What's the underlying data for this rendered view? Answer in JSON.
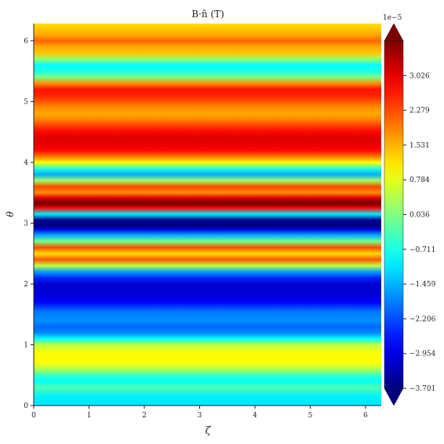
{
  "chart_data": {
    "type": "heatmap",
    "title": "B·n̂ (T)",
    "xlabel": "ζ",
    "ylabel": "θ",
    "xlim": [
      0,
      6.283
    ],
    "ylim": [
      0,
      6.283
    ],
    "x_ticks": [
      0,
      1,
      2,
      3,
      4,
      5,
      6
    ],
    "y_ticks": [
      0,
      1,
      2,
      3,
      4,
      5,
      6
    ],
    "colormap": "jet",
    "colorbar": {
      "exponent_label": "1e−5",
      "range": [
        -3.701,
        3.774
      ],
      "ticks": [
        -3.701,
        -2.954,
        -2.206,
        -1.459,
        -0.711,
        0.036,
        0.784,
        1.531,
        2.279,
        3.026
      ],
      "tick_labels": [
        "−3.701",
        "−2.954",
        "−2.206",
        "−1.459",
        "−0.711",
        "0.036",
        "0.784",
        "1.531",
        "2.279",
        "3.026"
      ],
      "extend": "both"
    },
    "note_structure": "field varies only with θ; constant along ζ",
    "profile_theta": [
      0.0,
      0.15,
      0.3,
      0.4,
      0.5,
      0.6,
      0.7,
      0.85,
      1.0,
      1.1,
      1.2,
      1.3,
      1.4,
      1.55,
      1.7,
      1.85,
      2.0,
      2.1,
      2.2,
      2.3,
      2.4,
      2.5,
      2.6,
      2.7,
      2.8,
      2.9,
      2.95,
      3.05,
      3.15,
      3.25,
      3.3,
      3.35,
      3.42,
      3.5,
      3.6,
      3.7,
      3.8,
      3.9,
      4.0,
      4.1,
      4.2,
      4.3,
      4.4,
      4.5,
      4.6,
      4.7,
      4.8,
      4.9,
      5.0,
      5.1,
      5.2,
      5.3,
      5.4,
      5.5,
      5.6,
      5.7,
      5.8,
      5.9,
      6.0,
      6.1,
      6.283
    ],
    "profile_value": [
      -1.1,
      -1.0,
      -0.3,
      -0.9,
      -0.5,
      0.4,
      0.9,
      1.0,
      0.5,
      -0.9,
      -1.8,
      -2.0,
      -1.7,
      -1.9,
      -2.8,
      -3.1,
      -3.1,
      -2.5,
      -1.6,
      0.5,
      2.2,
      1.2,
      2.3,
      0.0,
      -1.5,
      -3.0,
      -3.7,
      -3.6,
      -1.0,
      2.8,
      3.7,
      3.8,
      3.0,
      1.8,
      2.3,
      0.3,
      -1.5,
      -0.6,
      1.0,
      2.0,
      2.8,
      3.0,
      3.1,
      2.8,
      2.4,
      1.9,
      1.6,
      1.8,
      2.2,
      2.6,
      2.7,
      1.8,
      0.0,
      -0.7,
      -0.9,
      0.2,
      1.4,
      1.6,
      2.1,
      1.6,
      1.2
    ]
  }
}
